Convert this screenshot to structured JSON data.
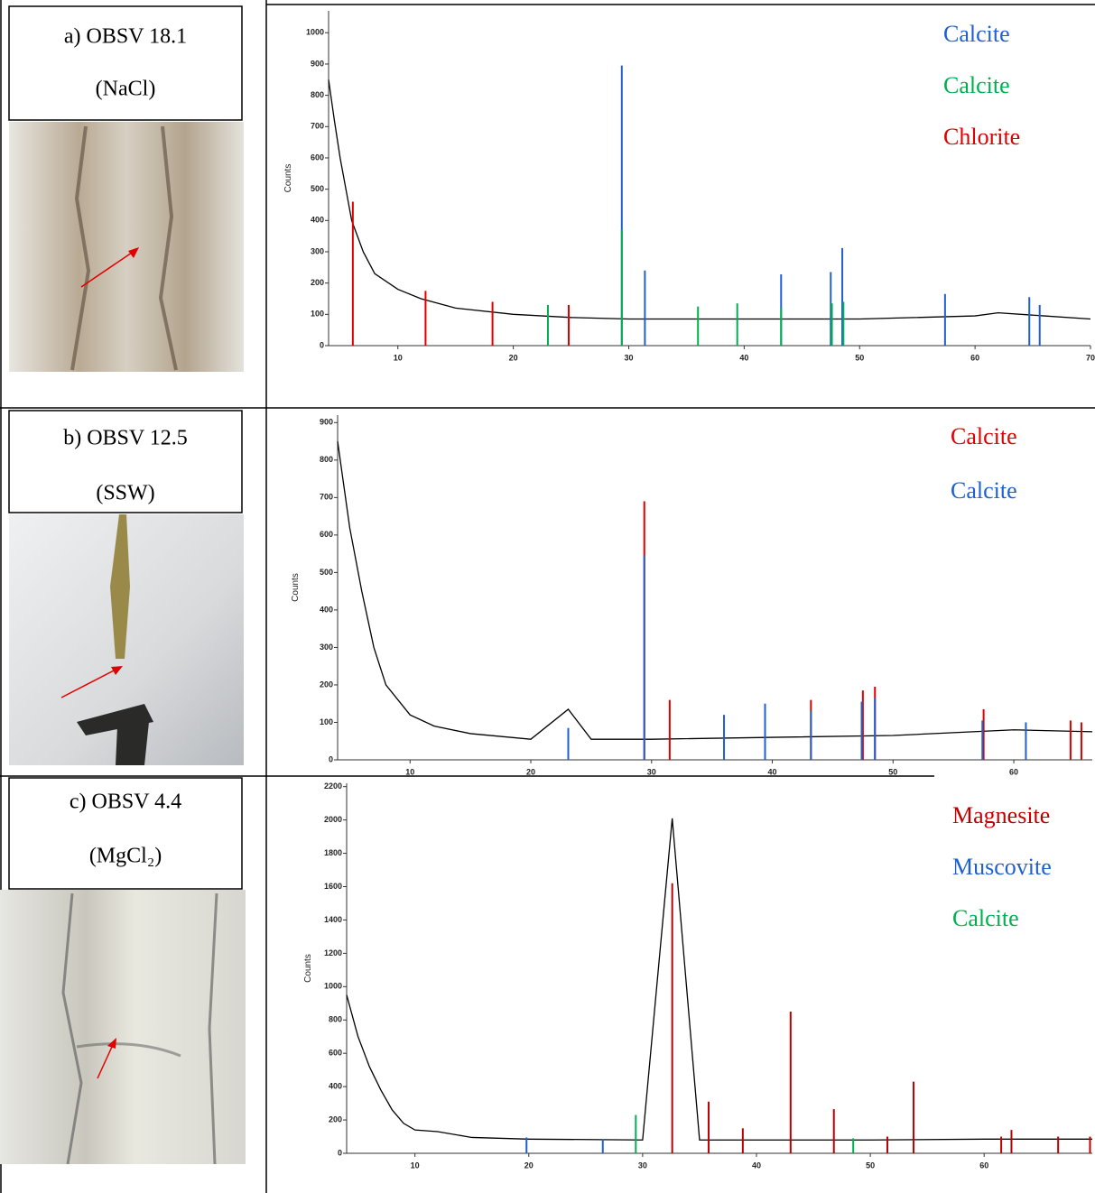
{
  "rows": [
    {
      "label": "a) OBSV 18.1",
      "medium": "(NaCl)"
    },
    {
      "label": "b) OBSV 12.5",
      "medium": "(SSW)"
    },
    {
      "label": "c) OBSV 4.4",
      "medium": "(MgCl₂)"
    }
  ],
  "chart_data": [
    {
      "type": "line",
      "y_label": "Counts",
      "xlim": [
        4,
        70
      ],
      "ylim": [
        0,
        1070
      ],
      "xticks": [
        10,
        20,
        30,
        40,
        50,
        60,
        70
      ],
      "yticks": [
        0,
        100,
        200,
        300,
        400,
        500,
        600,
        700,
        800,
        900,
        1000
      ],
      "trace": {
        "color": "#000000",
        "x": [
          4,
          4.5,
          5,
          6,
          7,
          8,
          10,
          12,
          15,
          20,
          25,
          30,
          40,
          50,
          60,
          62,
          66,
          70
        ],
        "values": [
          850,
          720,
          600,
          400,
          300,
          230,
          180,
          150,
          120,
          100,
          90,
          85,
          85,
          85,
          95,
          105,
          95,
          85
        ]
      },
      "series": [
        {
          "name": "Calcite",
          "color": "#1f5fd0",
          "x": [
            29.4,
            31.4,
            43.2,
            47.5,
            48.5,
            57.4,
            64.7,
            65.6
          ],
          "values": [
            895,
            240,
            228,
            235,
            312,
            165,
            155,
            130
          ]
        },
        {
          "name": "Calcite",
          "color": "#00b050",
          "x": [
            23.0,
            29.4,
            36.0,
            39.4,
            43.2,
            47.6,
            48.6
          ],
          "values": [
            130,
            370,
            125,
            135,
            120,
            135,
            140
          ]
        },
        {
          "name": "Chlorite",
          "color": "#e00000",
          "x": [
            6.1,
            12.4,
            18.2,
            24.8
          ],
          "values": [
            460,
            175,
            140,
            130
          ]
        }
      ]
    },
    {
      "type": "line",
      "y_label": "Counts",
      "xlim": [
        4,
        66.5
      ],
      "ylim": [
        0,
        920
      ],
      "xticks": [
        10,
        20,
        30,
        40,
        50,
        60
      ],
      "yticks": [
        0,
        100,
        200,
        300,
        400,
        500,
        600,
        700,
        800,
        900
      ],
      "trace": {
        "color": "#000000",
        "x": [
          4,
          5,
          6,
          7,
          8,
          10,
          12,
          15,
          20,
          23.1,
          25,
          30,
          40,
          50,
          60,
          66.5
        ],
        "values": [
          850,
          620,
          450,
          300,
          200,
          120,
          90,
          70,
          55,
          135,
          55,
          55,
          60,
          65,
          80,
          75
        ]
      },
      "series": [
        {
          "name": "Calcite",
          "color": "#e00000",
          "x": [
            29.4,
            31.5,
            43.2,
            47.5,
            48.5,
            57.5,
            64.7,
            65.6
          ],
          "values": [
            690,
            160,
            160,
            185,
            195,
            135,
            105,
            100
          ]
        },
        {
          "name": "Calcite",
          "color": "#1f5fd0",
          "x": [
            23.1,
            29.4,
            36.0,
            39.4,
            43.2,
            47.4,
            48.5,
            57.4,
            61.0
          ],
          "values": [
            85,
            545,
            120,
            150,
            130,
            155,
            165,
            105,
            100
          ]
        }
      ]
    },
    {
      "type": "line",
      "y_label": "Counts",
      "xlim": [
        4,
        69.5
      ],
      "ylim": [
        0,
        2220
      ],
      "xticks": [
        10,
        20,
        30,
        40,
        50,
        60
      ],
      "yticks": [
        0,
        200,
        400,
        600,
        800,
        1000,
        1200,
        1400,
        1600,
        1800,
        2000,
        2200
      ],
      "trace": {
        "color": "#000000",
        "x": [
          4,
          5,
          6,
          7,
          8,
          9,
          10,
          12,
          15,
          20,
          30,
          32.6,
          35,
          40,
          50,
          60,
          69.5
        ],
        "values": [
          950,
          700,
          520,
          380,
          260,
          180,
          140,
          130,
          95,
          85,
          80,
          2010,
          80,
          80,
          80,
          85,
          85
        ]
      },
      "series": [
        {
          "name": "Magnesite",
          "color": "#c00000",
          "x": [
            32.6,
            35.8,
            38.8,
            43.0,
            46.8,
            51.5,
            53.8,
            61.5,
            62.4,
            66.5,
            69.3
          ],
          "values": [
            1620,
            310,
            150,
            850,
            265,
            100,
            430,
            100,
            140,
            100,
            100
          ]
        },
        {
          "name": "Muscovite",
          "color": "#1f5fd0",
          "x": [
            19.8,
            26.5
          ],
          "values": [
            95,
            85
          ]
        },
        {
          "name": "Calcite",
          "color": "#00b050",
          "x": [
            29.4,
            48.5
          ],
          "values": [
            230,
            90
          ]
        }
      ]
    }
  ]
}
